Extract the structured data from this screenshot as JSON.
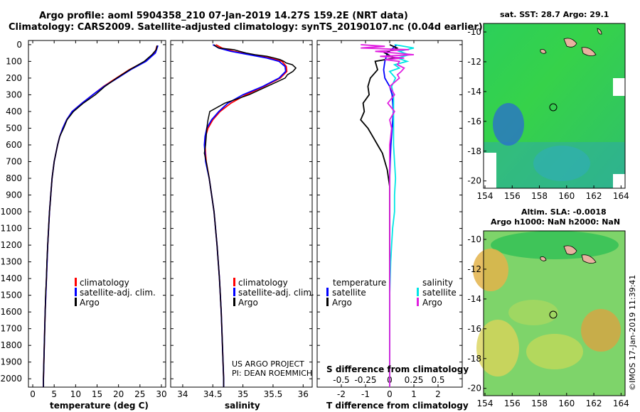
{
  "header": {
    "line1": "Argo profile: aoml 5904358_210 07-Jan-2019 14.27S 159.2E (NRT data)",
    "line2": "Climatology: CARS2009. Satellite-adjusted climatology: synTS_20190107.nc (0.04d earlier)"
  },
  "depth_ticks": [
    "0",
    "100",
    "200",
    "300",
    "400",
    "500",
    "600",
    "700",
    "800",
    "900",
    "1000",
    "1100",
    "1200",
    "1300",
    "1400",
    "1500",
    "1600",
    "1700",
    "1800",
    "1900",
    "2000"
  ],
  "colors": {
    "climatology": "#ff0000",
    "satellite": "#0000ff",
    "argo": "#000000",
    "cyan": "#00e5e5",
    "magenta": "#e020e0"
  },
  "chart_data": [
    {
      "type": "line",
      "title": "",
      "xlabel": "temperature (deg C)",
      "ylabel": "depth",
      "xlim": [
        -1,
        31
      ],
      "ylim": [
        2050,
        -25
      ],
      "xticks": [
        0,
        5,
        10,
        15,
        20,
        25,
        30
      ],
      "xtick_labels": [
        "0",
        "5",
        "10",
        "15",
        "20",
        "25",
        "30"
      ],
      "legend": [
        "climatology",
        "satellite-adj. clim.",
        "Argo"
      ],
      "series": [
        {
          "name": "climatology",
          "depth": [
            5,
            50,
            100,
            150,
            200,
            250,
            300,
            350,
            400,
            450,
            500,
            550,
            600,
            700,
            800,
            900,
            1000,
            1200,
            1400,
            1600,
            1800,
            2000,
            2050
          ],
          "values": [
            29.0,
            28.5,
            26.2,
            22.5,
            19.5,
            16.5,
            14.0,
            11.5,
            9.2,
            7.9,
            7.0,
            6.3,
            5.8,
            5.0,
            4.5,
            4.2,
            3.9,
            3.5,
            3.2,
            2.9,
            2.7,
            2.5,
            2.5
          ]
        },
        {
          "name": "satellite-adj. clim.",
          "depth": [
            5,
            50,
            100,
            150,
            200,
            250,
            300,
            350,
            400,
            450,
            500,
            550,
            600,
            700,
            800,
            900,
            1000,
            1200,
            1400,
            1600,
            1800,
            2000,
            2050
          ],
          "values": [
            29.2,
            28.6,
            26.4,
            22.8,
            19.8,
            16.6,
            14.0,
            11.5,
            9.2,
            7.9,
            7.0,
            6.3,
            5.8,
            5.0,
            4.5,
            4.2,
            3.9,
            3.5,
            3.2,
            2.9,
            2.7,
            2.5,
            2.5
          ]
        },
        {
          "name": "Argo",
          "depth": [
            5,
            30,
            60,
            100,
            150,
            200,
            250,
            300,
            350,
            400,
            450,
            500,
            550,
            600,
            650,
            700,
            800,
            900,
            1000,
            1100,
            1200,
            1300,
            1400,
            1500,
            1600,
            1700,
            1800,
            1900,
            2000,
            2050
          ],
          "values": [
            29.0,
            28.8,
            27.8,
            26.0,
            22.6,
            19.6,
            16.8,
            14.6,
            11.8,
            9.5,
            8.0,
            7.2,
            6.3,
            5.8,
            5.4,
            5.0,
            4.5,
            4.2,
            3.9,
            3.7,
            3.5,
            3.3,
            3.2,
            3.0,
            2.9,
            2.8,
            2.7,
            2.6,
            2.5,
            2.5
          ]
        }
      ]
    },
    {
      "type": "line",
      "title": "",
      "xlabel": "salinity",
      "ylabel": "",
      "xlim": [
        33.8,
        36.15
      ],
      "ylim": [
        2050,
        -25
      ],
      "xticks": [
        34,
        34.5,
        35,
        35.5,
        36
      ],
      "xtick_labels": [
        "34",
        "34.5",
        "35",
        "35.5",
        "36"
      ],
      "legend": [
        "climatology",
        "satellite-adj. clim.",
        "Argo"
      ],
      "annotation": [
        "US ARGO PROJECT",
        "PI: DEAN ROEMMICH"
      ],
      "series": [
        {
          "name": "climatology",
          "depth": [
            0,
            20,
            40,
            60,
            80,
            100,
            130,
            160,
            200,
            250,
            300,
            350,
            400,
            450,
            500,
            550,
            600,
            650,
            700,
            800,
            900,
            1000,
            1200,
            1400,
            1600,
            1800,
            2000,
            2050
          ],
          "values": [
            34.55,
            34.65,
            34.85,
            35.15,
            35.45,
            35.65,
            35.72,
            35.73,
            35.62,
            35.35,
            35.05,
            34.8,
            34.62,
            34.5,
            34.42,
            34.38,
            34.37,
            34.38,
            34.39,
            34.44,
            34.48,
            34.52,
            34.57,
            34.61,
            34.64,
            34.66,
            34.68,
            34.68
          ]
        },
        {
          "name": "satellite-adj. clim.",
          "depth": [
            0,
            20,
            40,
            60,
            80,
            100,
            130,
            160,
            200,
            250,
            300,
            350,
            400,
            450,
            500,
            550,
            600,
            650,
            700,
            800,
            900,
            1000,
            1200,
            1400,
            1600,
            1800,
            2000,
            2050
          ],
          "values": [
            34.5,
            34.6,
            34.8,
            35.1,
            35.4,
            35.6,
            35.7,
            35.71,
            35.6,
            35.33,
            35.0,
            34.75,
            34.6,
            34.48,
            34.4,
            34.37,
            34.36,
            34.37,
            34.38,
            34.44,
            34.48,
            34.52,
            34.57,
            34.61,
            34.64,
            34.66,
            34.68,
            34.68
          ]
        },
        {
          "name": "Argo",
          "depth": [
            0,
            10,
            20,
            30,
            40,
            50,
            60,
            70,
            80,
            90,
            100,
            110,
            120,
            140,
            160,
            180,
            200,
            250,
            300,
            350,
            400,
            450,
            500,
            550,
            600,
            650,
            700,
            800,
            900,
            1000,
            1200,
            1400,
            1600,
            1800,
            2000,
            2050
          ],
          "values": [
            34.52,
            34.55,
            34.6,
            34.85,
            34.95,
            35.05,
            35.2,
            35.4,
            35.52,
            35.62,
            35.68,
            35.72,
            35.82,
            35.88,
            35.83,
            35.74,
            35.7,
            35.4,
            35.1,
            34.7,
            34.45,
            34.42,
            34.4,
            34.39,
            34.38,
            34.36,
            34.39,
            34.44,
            34.48,
            34.52,
            34.57,
            34.61,
            34.64,
            34.66,
            34.68,
            34.68
          ]
        }
      ]
    },
    {
      "type": "line",
      "title": "",
      "xlabel": "T difference from climatology",
      "xlabel2": "S difference from climatology",
      "ylabel": "",
      "xlim": [
        -3,
        3
      ],
      "ylim": [
        2050,
        -25
      ],
      "xticks": [
        -2,
        -1,
        0,
        1,
        2
      ],
      "xtick_labels": [
        "-2",
        "-1",
        "0",
        "1",
        "2"
      ],
      "s_xticks": [
        -0.5,
        -0.25,
        0,
        0.25,
        0.5
      ],
      "s_xtick_labels": [
        "-0.5",
        "-0.25",
        "0",
        "0.25",
        "0.5"
      ],
      "legend_left_title": "temperature",
      "legend_right_title": "salinity",
      "legend": [
        "satellite",
        "Argo",
        "satellite",
        "Argo"
      ],
      "series": [
        {
          "name": "T satellite",
          "depth": [
            0,
            50,
            100,
            150,
            200,
            250,
            300,
            400,
            500,
            600,
            700,
            800,
            900,
            1000,
            1200,
            1500,
            1800,
            2050
          ],
          "values": [
            0.3,
            -0.1,
            -0.2,
            -0.25,
            -0.2,
            0.0,
            0.1,
            0.15,
            0.1,
            0.05,
            0.02,
            0.0,
            0.0,
            0.0,
            0.0,
            0.0,
            0.0,
            0.0
          ]
        },
        {
          "name": "T Argo",
          "depth": [
            0,
            20,
            50,
            80,
            100,
            150,
            200,
            250,
            300,
            350,
            400,
            450,
            500,
            550,
            600,
            650,
            700,
            750,
            800,
            850,
            900,
            1000,
            1200,
            1400,
            1600,
            1800,
            2000,
            2050
          ],
          "values": [
            0.0,
            0.3,
            -0.2,
            0.2,
            -0.6,
            -0.5,
            -0.8,
            -0.9,
            -0.85,
            -1.1,
            -1.05,
            -1.2,
            -0.9,
            -0.7,
            -0.5,
            -0.3,
            -0.2,
            -0.1,
            -0.05,
            0.0,
            0.0,
            0.0,
            0.0,
            0.0,
            0.0,
            0.0,
            0.0,
            0.0
          ]
        },
        {
          "name": "S satellite",
          "depth": [
            0,
            20,
            40,
            60,
            80,
            100,
            120,
            140,
            160,
            200,
            250,
            300,
            400,
            500,
            600,
            700,
            800,
            900,
            1000,
            1100,
            1200,
            1300,
            1500,
            1700,
            1900,
            2050
          ],
          "values": [
            0.05,
            0.25,
            0.1,
            0.2,
            0.08,
            0.18,
            0.05,
            0.1,
            0.0,
            0.06,
            0.02,
            0.04,
            0.04,
            0.04,
            0.04,
            0.05,
            0.06,
            0.05,
            0.05,
            0.03,
            0.02,
            0.01,
            0.0,
            0.0,
            0.0,
            0.0
          ]
        },
        {
          "name": "S Argo",
          "depth": [
            0,
            10,
            20,
            30,
            40,
            50,
            60,
            70,
            80,
            90,
            100,
            120,
            140,
            160,
            180,
            200,
            250,
            300,
            350,
            400,
            450,
            500,
            550,
            600,
            700,
            800,
            900,
            1000,
            1200,
            1500,
            2050
          ],
          "values": [
            -0.3,
            -0.05,
            -0.3,
            0.2,
            -0.15,
            0.05,
            0.25,
            -0.1,
            0.15,
            -0.05,
            0.1,
            0.08,
            0.15,
            0.12,
            0.08,
            0.1,
            0.0,
            0.05,
            -0.02,
            0.05,
            0.0,
            0.02,
            0.01,
            0.0,
            0.0,
            0.0,
            0.0,
            0.0,
            0.0,
            0.0,
            0.0
          ]
        }
      ]
    }
  ],
  "maps": {
    "sst_title": "sat. SST: 28.7 Argo: 29.1",
    "sla_title1": "Altim. SLA: -0.0018",
    "sla_title2": "Argo h1000: NaN h2000: NaN",
    "lon_ticks": [
      "154",
      "156",
      "158",
      "160",
      "162",
      "164"
    ],
    "lat_ticks": [
      "-10",
      "-12",
      "-14",
      "-16",
      "-18",
      "-20"
    ],
    "credit": "©IMOS 17-Jan-2019 11:39:41"
  }
}
